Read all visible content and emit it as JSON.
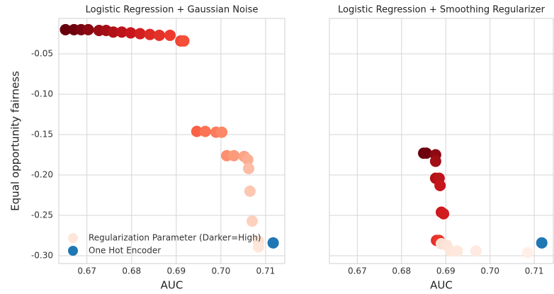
{
  "chart_data": [
    {
      "type": "scatter",
      "title": "Logistic Regression + Gaussian Noise",
      "xlabel": "AUC",
      "ylabel": "Equal opportunity fairness",
      "xlim": [
        0.6637,
        0.7143
      ],
      "ylim": [
        -0.3096,
        -0.0061
      ],
      "xticks": [
        0.67,
        0.68,
        0.69,
        {
          "value": 0.7,
          "label": "0.70"
        },
        0.71
      ],
      "yticks": [
        {
          "value": -0.05,
          "label": "-0.05"
        },
        {
          "value": -0.1,
          "label": "-0.10"
        },
        {
          "value": -0.15,
          "label": "-0.15"
        },
        {
          "value": -0.2,
          "label": "-0.20"
        },
        {
          "value": -0.25,
          "label": "-0.25"
        },
        {
          "value": -0.3,
          "label": "-0.30"
        }
      ],
      "grid": true,
      "legend": "lower left",
      "series": [
        {
          "name": "Regularization Parameter (Darker=High)",
          "x": [
            0.6652,
            0.6671,
            0.6687,
            0.6703,
            0.6727,
            0.6743,
            0.6759,
            0.6778,
            0.6798,
            0.6819,
            0.6841,
            0.6862,
            0.6886,
            0.691,
            0.6917,
            0.6946,
            0.6965,
            0.6989,
            0.7002,
            0.7013,
            0.7029,
            0.7052,
            0.706,
            0.7062,
            0.7065,
            0.707,
            0.7084,
            0.7084
          ],
          "values": [
            -0.02,
            -0.02,
            -0.02,
            -0.02,
            -0.021,
            -0.021,
            -0.023,
            -0.023,
            -0.024,
            -0.025,
            -0.026,
            -0.027,
            -0.027,
            -0.034,
            -0.034,
            -0.146,
            -0.146,
            -0.147,
            -0.147,
            -0.176,
            -0.176,
            -0.177,
            -0.181,
            -0.192,
            -0.22,
            -0.257,
            -0.282,
            -0.289
          ],
          "colors": [
            "#67000d",
            "#6d010e",
            "#7a0510",
            "#8a0812",
            "#9a0c14",
            "#a50f15",
            "#b11218",
            "#bc141a",
            "#c8171c",
            "#d21f20",
            "#dc2a25",
            "#e53228",
            "#ee3a2c",
            "#f14432",
            "#f44f39",
            "#f96245",
            "#fb7353",
            "#fb7c5c",
            "#fc8767",
            "#fc8f6f",
            "#fc9b7c",
            "#fca486",
            "#fcae92",
            "#fdbca4",
            "#fdc7b2",
            "#fdd1be",
            "#fee0d2",
            "#fee6da"
          ]
        },
        {
          "name": "One Hot Encoder",
          "color": "#1f77b4",
          "x": [
            0.7117
          ],
          "values": [
            -0.284
          ]
        }
      ]
    },
    {
      "type": "scatter",
      "title": "Logistic Regression + Smoothing Regularizer",
      "xlabel": "AUC",
      "xlim": [
        0.6637,
        0.7143
      ],
      "ylim": [
        -0.3096,
        -0.0061
      ],
      "xticks": [
        0.67,
        0.68,
        0.69,
        {
          "value": 0.7,
          "label": "0.70"
        },
        0.71
      ],
      "yticks": [
        -0.05,
        -0.1,
        -0.15,
        -0.2,
        -0.25,
        -0.3
      ],
      "grid": true,
      "series": [
        {
          "x": [
            0.685,
            0.6856,
            0.6877,
            0.6877,
            0.6877,
            0.6885,
            0.6887,
            0.689,
            0.6895,
            0.6879,
            0.6885,
            0.689,
            0.6902,
            0.6911,
            0.6926,
            0.6968,
            0.7085
          ],
          "values": [
            -0.173,
            -0.173,
            -0.175,
            -0.183,
            -0.204,
            -0.204,
            -0.213,
            -0.246,
            -0.248,
            -0.281,
            -0.281,
            -0.285,
            -0.287,
            -0.294,
            -0.294,
            -0.294,
            -0.296
          ],
          "colors": [
            "#67000d",
            "#6f010e",
            "#8e0912",
            "#a10e15",
            "#b01217",
            "#bb141a",
            "#c4161c",
            "#cb181d",
            "#d11d1f",
            "#e33029",
            "#ea362a",
            "#fde0d2",
            "#fee4d8",
            "#fee6da",
            "#fee8dd",
            "#feeae0",
            "#ffefe8"
          ]
        },
        {
          "color": "#1f77b4",
          "x": [
            0.7117
          ],
          "values": [
            -0.284
          ]
        }
      ]
    }
  ]
}
